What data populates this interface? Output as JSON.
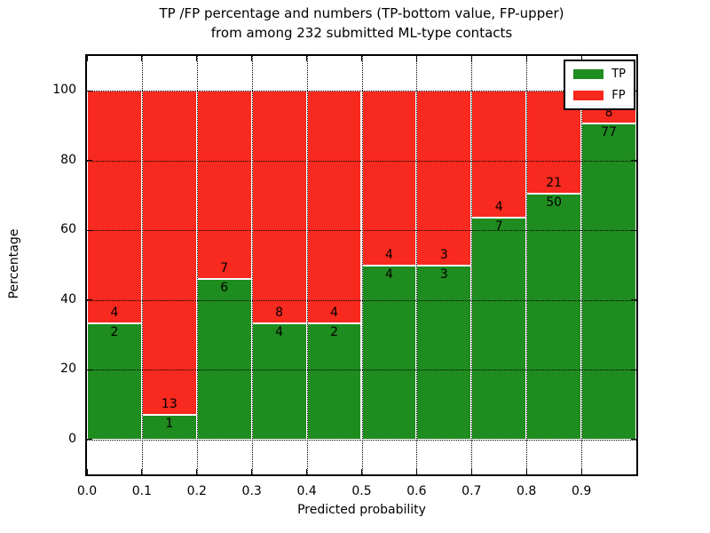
{
  "title_line1": "TP /FP percentage and numbers (TP-bottom value, FP-upper)",
  "title_line2": "from among 232 submitted ML-type contacts",
  "axes": {
    "xlabel": "Predicted probability",
    "ylabel": "Percentage",
    "x_ticks": [
      "0.0",
      "0.1",
      "0.2",
      "0.3",
      "0.4",
      "0.5",
      "0.6",
      "0.7",
      "0.8",
      "0.9"
    ],
    "y_ticks": [
      "0",
      "20",
      "40",
      "60",
      "80",
      "100"
    ],
    "y_tick_values": [
      0,
      20,
      40,
      60,
      80,
      100
    ]
  },
  "colors": {
    "tp": "#1f8c1f",
    "fp": "#f8291e",
    "grid": "#000000",
    "background": "#ffffff"
  },
  "legend": [
    {
      "label": "TP",
      "color": "#1f8c1f"
    },
    {
      "label": "FP",
      "color": "#f8291e"
    }
  ],
  "chart_data": {
    "type": "bar",
    "stacked": true,
    "normalized_to_percent": 100,
    "title": "TP /FP percentage and numbers (TP-bottom value, FP-upper) from among 232 submitted ML-type contacts",
    "xlabel": "Predicted probability",
    "ylabel": "Percentage",
    "xlim": [
      0.0,
      1.0
    ],
    "ylim": [
      -10,
      110
    ],
    "bin_width": 0.1,
    "grid": true,
    "legend_position": "upper right",
    "categories": [
      "0.0-0.1",
      "0.1-0.2",
      "0.2-0.3",
      "0.3-0.4",
      "0.4-0.5",
      "0.5-0.6",
      "0.6-0.7",
      "0.7-0.8",
      "0.8-0.9",
      "0.9-1.0"
    ],
    "series": [
      {
        "name": "TP",
        "position": "bottom",
        "counts": [
          2,
          1,
          6,
          4,
          2,
          4,
          3,
          7,
          50,
          77
        ]
      },
      {
        "name": "FP",
        "position": "top",
        "counts": [
          4,
          13,
          7,
          8,
          4,
          4,
          3,
          4,
          21,
          8
        ]
      }
    ],
    "tp_percent_of_bin": [
      33.3,
      7.1,
      46.2,
      33.3,
      33.3,
      50.0,
      50.0,
      63.6,
      70.4,
      90.6
    ],
    "total_contacts": 232
  }
}
